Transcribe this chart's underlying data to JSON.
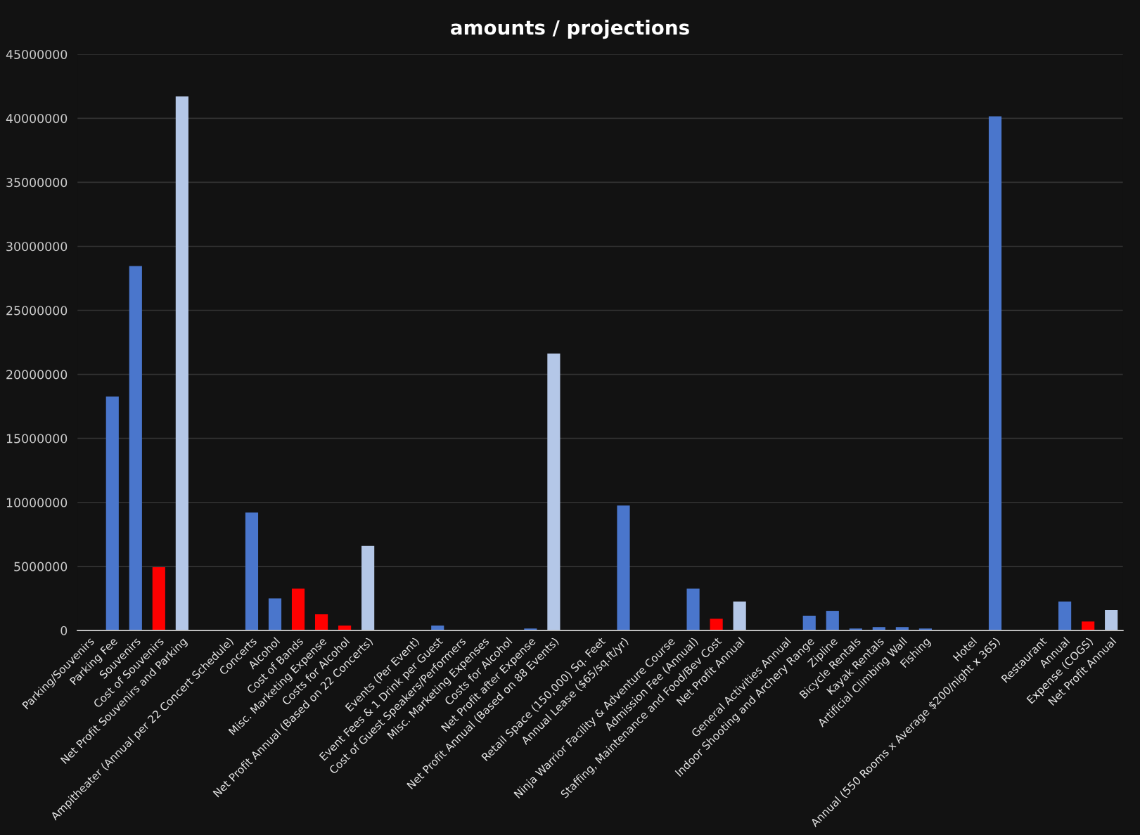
{
  "chart_data": {
    "type": "bar",
    "title": "amounts / projections",
    "categories": [
      "Parking/Souvenirs",
      "Parking Fee",
      "Souvenirs",
      "Cost of Souvenirs",
      "Net Profit Souvenirs and Parking",
      null,
      "Ampitheater (Annual per 22 Concert Schedule)",
      "Concerts",
      "Alcohol",
      "Cost of Bands",
      "Misc. Marketing Expense",
      "Costs for Alcohol",
      "Net Profit Annual (Based on 22 Concerts)",
      null,
      "Events (Per Event)",
      "Event Fees & 1 Drink per Guest",
      "Cost of Guest Speakers/Performers",
      "Misc. Marketing Expenses",
      "Costs for Alcohol",
      "Net Profit after Expense",
      "Net Profit Annual (Based on 88 Events)",
      null,
      "Retail Space (150,000) Sq. Feet",
      "Annual Lease ($65/sq.ft/yr)",
      null,
      "Ninja Warrior Facility & Adventure Course",
      "Admission Fee (Annual)",
      "Staffing, Maintenance and Food/Bev Cost",
      "Net Profit Annual",
      null,
      "General Activities Annual",
      "Indoor Shooting and Archery Range",
      "Zipline",
      "Bicycle Rentals",
      "Kayak Rentals",
      "Artificial Climbing Wall",
      "Fishing",
      null,
      "Hotel",
      "Annual (550 Rooms x Average $200/night x 365)",
      null,
      "Restaurant",
      "Annual",
      "Expense (COGS)",
      "Net Profit Annual"
    ],
    "values": [
      null,
      18260000,
      28460000,
      4940000,
      41700000,
      null,
      null,
      9200000,
      2500000,
      3260000,
      1260000,
      380000,
      6600000,
      null,
      null,
      380000,
      30000,
      30000,
      30000,
      150000,
      21630000,
      null,
      null,
      9760000,
      null,
      null,
      3260000,
      910000,
      2260000,
      null,
      null,
      1150000,
      1530000,
      150000,
      260000,
      260000,
      150000,
      null,
      null,
      40150000,
      null,
      null,
      2260000,
      700000,
      1590000
    ],
    "colors": [
      null,
      "#4a76cc",
      "#4a76cc",
      "#ff0000",
      "#b4c7e7",
      null,
      null,
      "#4a76cc",
      "#4a76cc",
      "#ff0000",
      "#ff0000",
      "#ff0000",
      "#b4c7e7",
      null,
      null,
      "#4a76cc",
      "#4a76cc",
      "#4a76cc",
      "#4a76cc",
      "#4a76cc",
      "#b4c7e7",
      null,
      null,
      "#4a76cc",
      null,
      null,
      "#4a76cc",
      "#ff0000",
      "#b4c7e7",
      null,
      null,
      "#4a76cc",
      "#4a76cc",
      "#4a76cc",
      "#4a76cc",
      "#4a76cc",
      "#4a76cc",
      null,
      null,
      "#4a76cc",
      null,
      null,
      "#4a76cc",
      "#ff0000",
      "#b4c7e7"
    ],
    "ylim": [
      0,
      45000000
    ],
    "yticks": [
      0,
      5000000,
      10000000,
      15000000,
      20000000,
      25000000,
      30000000,
      35000000,
      40000000,
      45000000
    ],
    "grid": "y"
  }
}
